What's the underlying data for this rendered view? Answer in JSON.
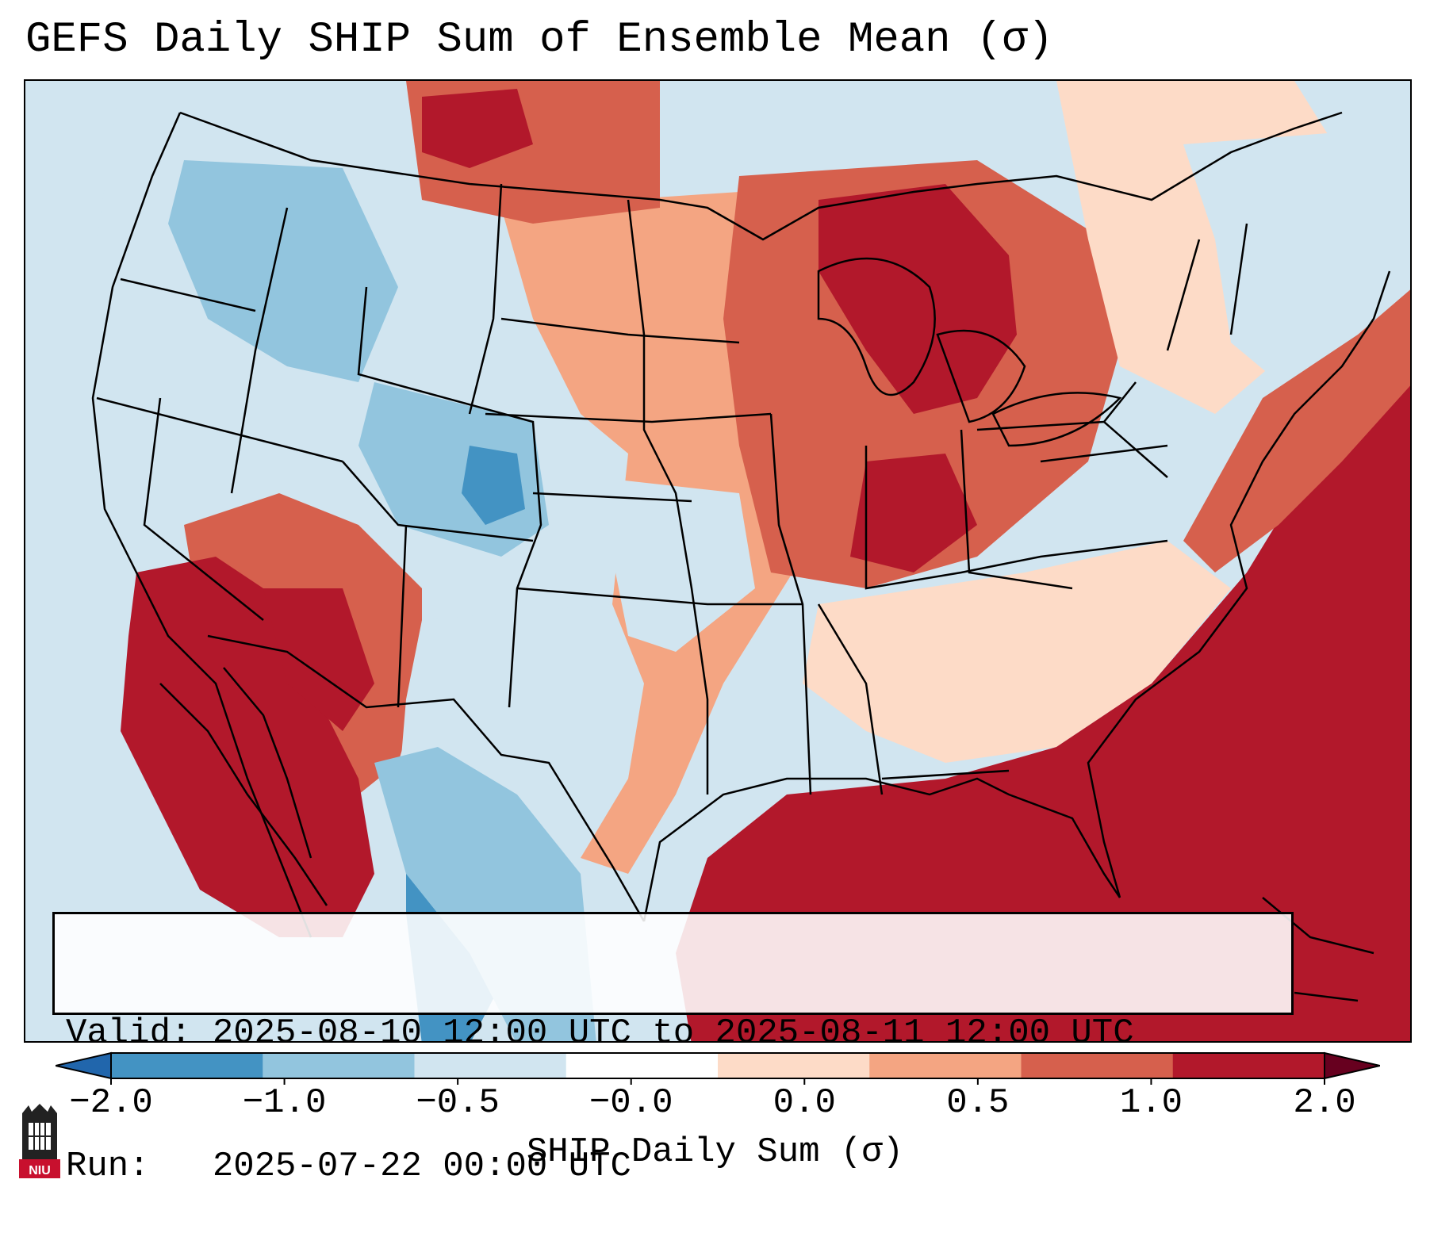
{
  "title": "GEFS Daily SHIP Sum of Ensemble Mean (σ)",
  "info": {
    "valid": "Valid: 2025-08-10 12:00 UTC to 2025-08-11 12:00 UTC",
    "run": "Run:   2025-07-22 00:00 UTC"
  },
  "colorbar": {
    "label": "SHIP Daily Sum (σ)",
    "ticks": [
      "−2.0",
      "−1.0",
      "−0.5",
      "−0.0",
      "0.0",
      "0.5",
      "1.0",
      "2.0"
    ],
    "colors": [
      "#4393c3",
      "#92c5de",
      "#d1e5f0",
      "#ffffff",
      "#fddbc7",
      "#f4a582",
      "#d6604d",
      "#b2182b"
    ],
    "under_color": "#2166ac",
    "over_color": "#67001f"
  },
  "logo": {
    "text": "NIU",
    "color": "#c8102e"
  },
  "map_colors": {
    "strong_negative": "#4393c3",
    "negative": "#92c5de",
    "weak_negative": "#d1e5f0",
    "weak_positive": "#fddbc7",
    "positive": "#f4a582",
    "moderate_positive": "#d6604d",
    "strong_positive": "#b2182b"
  }
}
